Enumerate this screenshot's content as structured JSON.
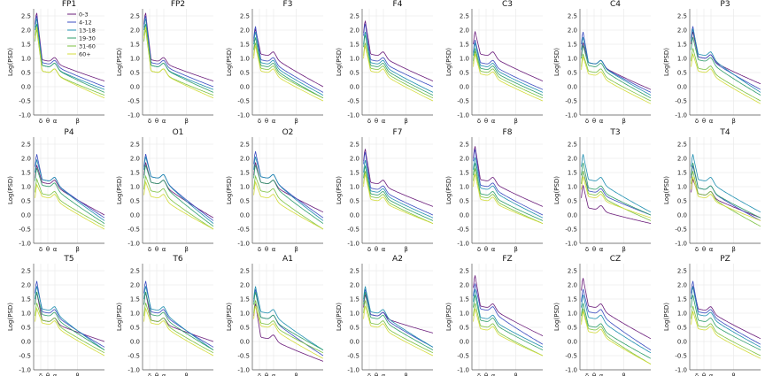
{
  "chart_data": {
    "type": "line",
    "ylabel": "Log(PSD)",
    "ylim": [
      -1.0,
      2.75
    ],
    "yticks": [
      "-1.0",
      "-0.5",
      "0.0",
      "0.5",
      "1.0",
      "1.5",
      "2.0",
      "2.5"
    ],
    "xticks": [
      "δ",
      "θ",
      "α",
      "β"
    ],
    "legend_placement": "inside first panel, upper right",
    "series": [
      {
        "name": "0-3",
        "color": "#6a1b7a"
      },
      {
        "name": "4-12",
        "color": "#3b4cc0"
      },
      {
        "name": "13-18",
        "color": "#1f8fb0"
      },
      {
        "name": "19-30",
        "color": "#2e9e6a"
      },
      {
        "name": "31-60",
        "color": "#7cc242"
      },
      {
        "name": "60+",
        "color": "#d4dc3c"
      }
    ],
    "panels": [
      {
        "title": "FP1",
        "peak": [
          2.7,
          2.6,
          2.5,
          2.3,
          2.1,
          2.2
        ],
        "alpha": [
          1.0,
          0.9,
          0.8,
          0.8,
          0.6,
          0.6
        ],
        "end": [
          0.2,
          0.0,
          -0.1,
          -0.2,
          -0.3,
          -0.4
        ]
      },
      {
        "title": "FP2",
        "peak": [
          2.7,
          2.6,
          2.5,
          2.3,
          2.1,
          2.2
        ],
        "alpha": [
          1.0,
          0.9,
          0.8,
          0.8,
          0.6,
          0.6
        ],
        "end": [
          0.2,
          0.0,
          -0.1,
          -0.2,
          -0.3,
          -0.4
        ]
      },
      {
        "title": "F3",
        "peak": [
          2.1,
          2.2,
          2.0,
          1.8,
          1.6,
          1.5
        ],
        "alpha": [
          1.2,
          1.0,
          0.9,
          0.8,
          0.7,
          0.6
        ],
        "end": [
          0.0,
          -0.2,
          -0.3,
          -0.4,
          -0.4,
          -0.5
        ]
      },
      {
        "title": "F4",
        "peak": [
          2.4,
          2.3,
          2.0,
          1.9,
          1.6,
          1.5
        ],
        "alpha": [
          1.2,
          1.0,
          0.9,
          0.8,
          0.7,
          0.6
        ],
        "end": [
          0.2,
          0.0,
          -0.2,
          -0.3,
          -0.4,
          -0.5
        ]
      },
      {
        "title": "C3",
        "peak": [
          2.0,
          1.7,
          1.6,
          1.4,
          1.3,
          1.2
        ],
        "alpha": [
          1.2,
          0.9,
          0.8,
          0.7,
          0.6,
          0.5
        ],
        "end": [
          0.2,
          -0.1,
          -0.2,
          -0.3,
          -0.4,
          -0.5
        ]
      },
      {
        "title": "C4",
        "peak": [
          1.6,
          2.0,
          1.8,
          1.5,
          1.2,
          1.1
        ],
        "alpha": [
          0.9,
          0.9,
          0.9,
          0.8,
          0.6,
          0.5
        ],
        "end": [
          -0.1,
          -0.2,
          -0.3,
          -0.4,
          -0.5,
          -0.6
        ]
      },
      {
        "title": "P3",
        "peak": [
          2.0,
          2.2,
          2.1,
          1.8,
          1.4,
          1.2
        ],
        "alpha": [
          1.1,
          1.1,
          1.2,
          1.0,
          0.7,
          0.6
        ],
        "end": [
          0.1,
          -0.1,
          -0.2,
          -0.3,
          -0.5,
          -0.6
        ]
      },
      {
        "title": "P4",
        "peak": [
          1.8,
          2.2,
          2.0,
          1.7,
          1.3,
          1.1
        ],
        "alpha": [
          1.2,
          1.3,
          1.3,
          1.1,
          0.8,
          0.7
        ],
        "end": [
          0.0,
          -0.1,
          -0.2,
          -0.3,
          -0.4,
          -0.5
        ]
      },
      {
        "title": "O1",
        "peak": [
          1.9,
          2.2,
          2.1,
          1.8,
          1.4,
          1.2
        ],
        "alpha": [
          1.2,
          1.4,
          1.4,
          1.2,
          0.9,
          0.7
        ],
        "end": [
          -0.1,
          -0.2,
          -0.3,
          -0.4,
          -0.5,
          -0.5
        ]
      },
      {
        "title": "O2",
        "peak": [
          1.9,
          2.3,
          2.1,
          1.8,
          1.4,
          1.2
        ],
        "alpha": [
          1.2,
          1.4,
          1.4,
          1.2,
          0.9,
          0.7
        ],
        "end": [
          0.1,
          -0.1,
          -0.2,
          -0.3,
          -0.5,
          -0.5
        ]
      },
      {
        "title": "F7",
        "peak": [
          2.4,
          2.3,
          2.0,
          1.8,
          1.6,
          1.5
        ],
        "alpha": [
          1.2,
          1.0,
          0.9,
          0.8,
          0.7,
          0.6
        ],
        "end": [
          0.3,
          0.0,
          -0.1,
          -0.2,
          -0.3,
          -0.3
        ]
      },
      {
        "title": "F8",
        "peak": [
          2.5,
          2.4,
          2.1,
          1.9,
          1.7,
          1.5
        ],
        "alpha": [
          1.3,
          1.1,
          1.0,
          0.8,
          0.7,
          0.6
        ],
        "end": [
          0.3,
          0.0,
          -0.1,
          -0.2,
          -0.3,
          -0.3
        ]
      },
      {
        "title": "T3",
        "peak": [
          1.1,
          1.6,
          2.2,
          1.9,
          1.6,
          1.4
        ],
        "alpha": [
          0.3,
          0.9,
          1.3,
          1.0,
          0.8,
          0.7
        ],
        "end": [
          -0.3,
          0.0,
          0.1,
          0.0,
          -0.2,
          -0.1
        ]
      },
      {
        "title": "T4",
        "peak": [
          1.3,
          1.8,
          2.2,
          1.9,
          1.6,
          1.4
        ],
        "alpha": [
          0.8,
          1.0,
          1.3,
          1.0,
          0.8,
          0.7
        ],
        "end": [
          -0.1,
          -0.2,
          0.1,
          -0.1,
          -0.4,
          -0.2
        ]
      },
      {
        "title": "T5",
        "peak": [
          1.8,
          2.2,
          2.0,
          1.8,
          1.4,
          1.2
        ],
        "alpha": [
          0.8,
          1.1,
          1.2,
          1.0,
          0.8,
          0.7
        ],
        "end": [
          0.0,
          -0.2,
          -0.3,
          -0.3,
          -0.4,
          -0.5
        ]
      },
      {
        "title": "T6",
        "peak": [
          1.8,
          2.2,
          2.0,
          1.8,
          1.4,
          1.2
        ],
        "alpha": [
          0.8,
          1.1,
          1.2,
          1.0,
          0.8,
          0.7
        ],
        "end": [
          0.0,
          -0.2,
          -0.3,
          -0.3,
          -0.4,
          -0.5
        ]
      },
      {
        "title": "A1",
        "peak": [
          1.4,
          1.9,
          2.0,
          1.8,
          1.5,
          1.3
        ],
        "alpha": [
          0.2,
          0.9,
          1.1,
          0.9,
          0.7,
          0.6
        ],
        "end": [
          -0.7,
          -0.5,
          -0.3,
          -0.3,
          -0.4,
          -0.6
        ]
      },
      {
        "title": "A2",
        "peak": [
          1.7,
          1.9,
          2.0,
          1.8,
          1.5,
          1.3
        ],
        "alpha": [
          1.0,
          1.0,
          1.1,
          0.9,
          0.7,
          0.6
        ],
        "end": [
          0.3,
          -0.2,
          -0.2,
          -0.3,
          -0.4,
          -0.5
        ]
      },
      {
        "title": "FZ",
        "peak": [
          2.4,
          2.1,
          1.9,
          1.7,
          1.4,
          1.2
        ],
        "alpha": [
          1.3,
          1.2,
          0.9,
          0.8,
          0.6,
          0.5
        ],
        "end": [
          0.2,
          -0.1,
          -0.2,
          -0.3,
          -0.5,
          -0.5
        ]
      },
      {
        "title": "CZ",
        "peak": [
          2.3,
          1.9,
          1.7,
          1.4,
          1.2,
          1.1
        ],
        "alpha": [
          1.3,
          1.1,
          0.9,
          0.6,
          0.5,
          0.4
        ],
        "end": [
          0.1,
          -0.3,
          -0.4,
          -0.6,
          -0.8,
          -0.8
        ]
      },
      {
        "title": "PZ",
        "peak": [
          2.0,
          2.2,
          2.0,
          1.7,
          1.3,
          1.1
        ],
        "alpha": [
          1.2,
          1.1,
          1.0,
          0.8,
          0.6,
          0.5
        ],
        "end": [
          0.1,
          -0.1,
          -0.2,
          -0.3,
          -0.5,
          -0.6
        ]
      }
    ]
  }
}
